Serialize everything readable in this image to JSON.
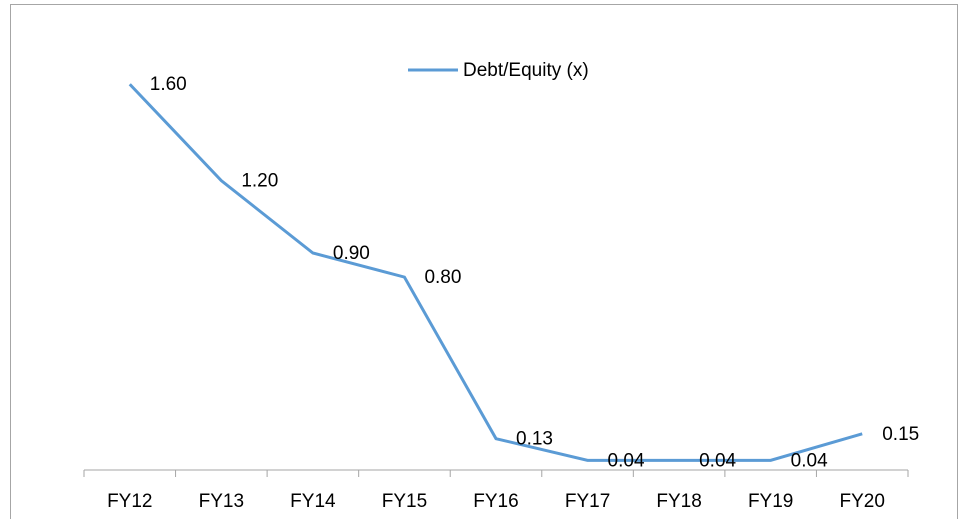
{
  "chart_data": {
    "type": "line",
    "categories": [
      "FY12",
      "FY13",
      "FY14",
      "FY15",
      "FY16",
      "FY17",
      "FY18",
      "FY19",
      "FY20"
    ],
    "series": [
      {
        "name": "Debt/Equity (x)",
        "color": "#5b9bd5",
        "values": [
          1.6,
          1.2,
          0.9,
          0.8,
          0.13,
          0.04,
          0.04,
          0.04,
          0.15
        ],
        "value_labels": [
          "1.60",
          "1.20",
          "0.90",
          "0.80",
          "0.13",
          "0.04",
          "0.04",
          "0.04",
          "0.15"
        ]
      }
    ],
    "ylim": [
      0,
      1.8
    ],
    "legend": "top"
  }
}
